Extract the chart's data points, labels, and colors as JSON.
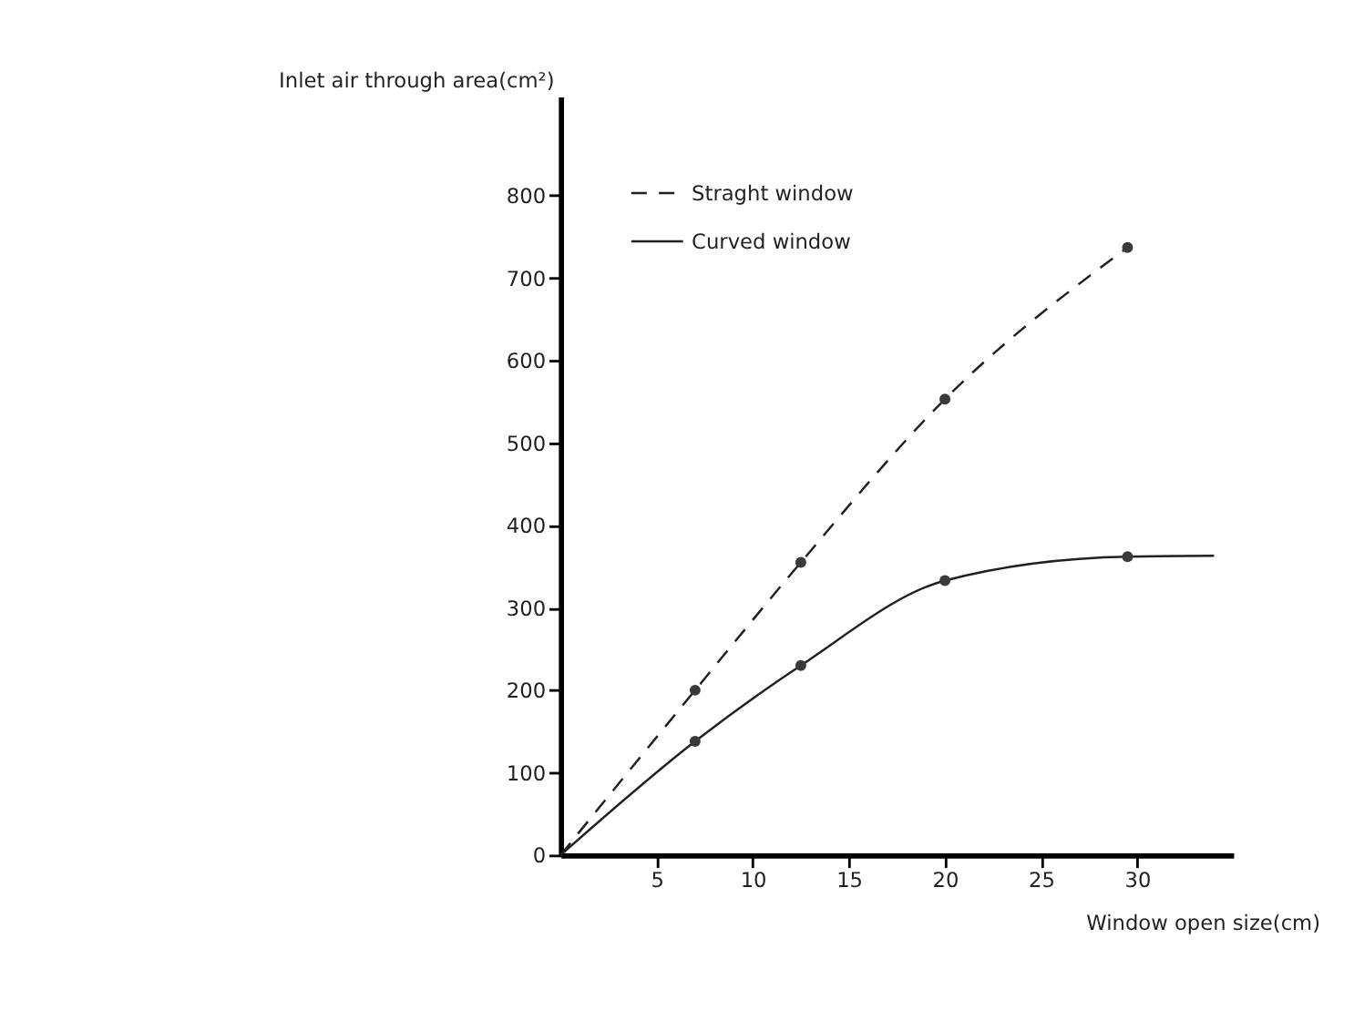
{
  "chart_data": {
    "type": "line",
    "xlabel": "Window open size(cm)",
    "ylabel": "Inlet air through area(cm²)",
    "xlim": [
      0,
      35
    ],
    "ylim": [
      0,
      920
    ],
    "xticks": [
      5,
      10,
      15,
      20,
      25,
      30
    ],
    "yticks": [
      0,
      100,
      200,
      300,
      400,
      500,
      600,
      700,
      800
    ],
    "grid": false,
    "legend": "top left",
    "series": [
      {
        "name": "Straght window",
        "line_style": "dashed",
        "marker": "none",
        "color": "#231f20",
        "x": [
          0,
          7,
          12.5,
          20,
          29.5
        ],
        "values": [
          0,
          200,
          355,
          553,
          737
        ]
      },
      {
        "name": "Curved window",
        "line_style": "solid",
        "marker": "none",
        "color": "#231f20",
        "x": [
          0,
          7,
          12.5,
          20,
          29.5,
          34
        ],
        "values": [
          0,
          138,
          230,
          333,
          362,
          363
        ]
      },
      {
        "type": "scatter",
        "marker": "circle",
        "color": "#3a3a3a",
        "x": [
          7,
          12.5,
          20,
          29.5
        ],
        "values": [
          200,
          355,
          553,
          737
        ]
      },
      {
        "type": "scatter",
        "marker": "circle",
        "color": "#3a3a3a",
        "x": [
          7,
          12.5,
          20,
          29.5
        ],
        "values": [
          138,
          230,
          333,
          362
        ]
      }
    ]
  }
}
